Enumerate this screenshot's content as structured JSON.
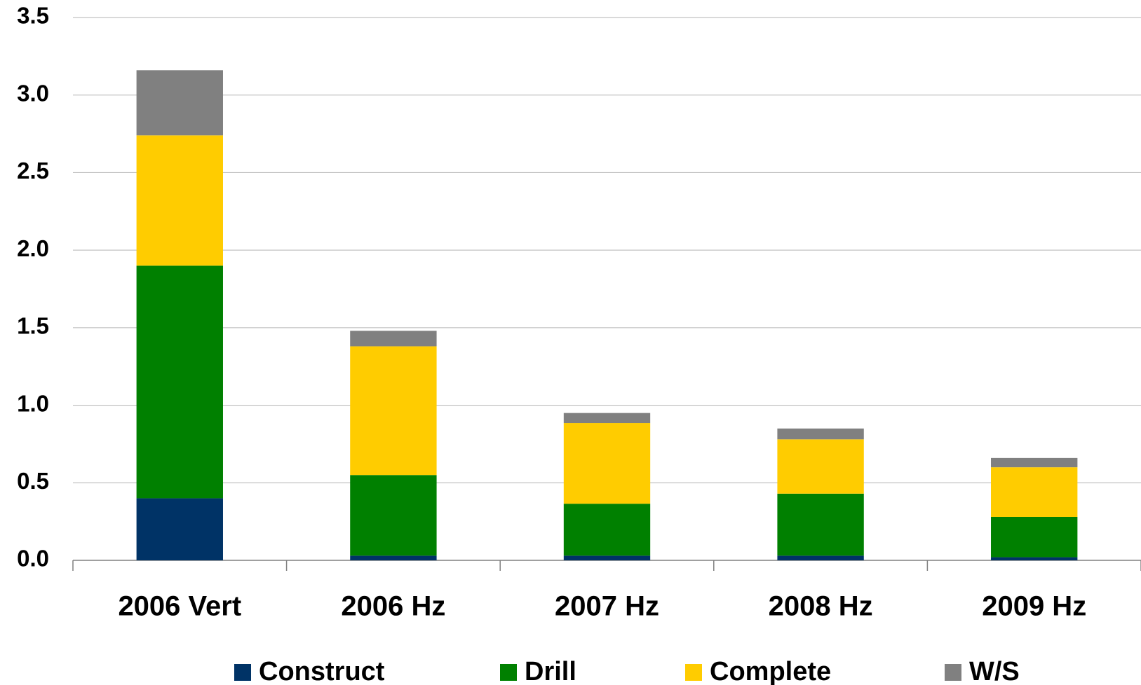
{
  "chart_data": {
    "type": "stacked-bar",
    "categories": [
      "2006 Vert",
      "2006 Hz",
      "2007 Hz",
      "2008 Hz",
      "2009 Hz"
    ],
    "series": [
      {
        "name": "Construct",
        "color": "#003366",
        "values": [
          0.4,
          0.03,
          0.03,
          0.03,
          0.02
        ]
      },
      {
        "name": "Drill",
        "color": "#008000",
        "values": [
          1.5,
          0.52,
          0.335,
          0.4,
          0.26
        ]
      },
      {
        "name": "Complete",
        "color": "#ffcc00",
        "values": [
          0.84,
          0.83,
          0.52,
          0.35,
          0.32
        ]
      },
      {
        "name": "W/S",
        "color": "#808080",
        "values": [
          0.42,
          0.1,
          0.065,
          0.07,
          0.06
        ]
      }
    ],
    "ylim": [
      0,
      3.5
    ],
    "yticks": [
      {
        "value": 0,
        "label": "0.0"
      },
      0.5,
      {
        "value": 1,
        "label": "1.0"
      },
      1.5,
      {
        "value": 2,
        "label": "2.0"
      },
      2.5,
      {
        "value": 3,
        "label": "3.0"
      },
      3.5
    ],
    "grid": true,
    "legend": "bottom"
  }
}
